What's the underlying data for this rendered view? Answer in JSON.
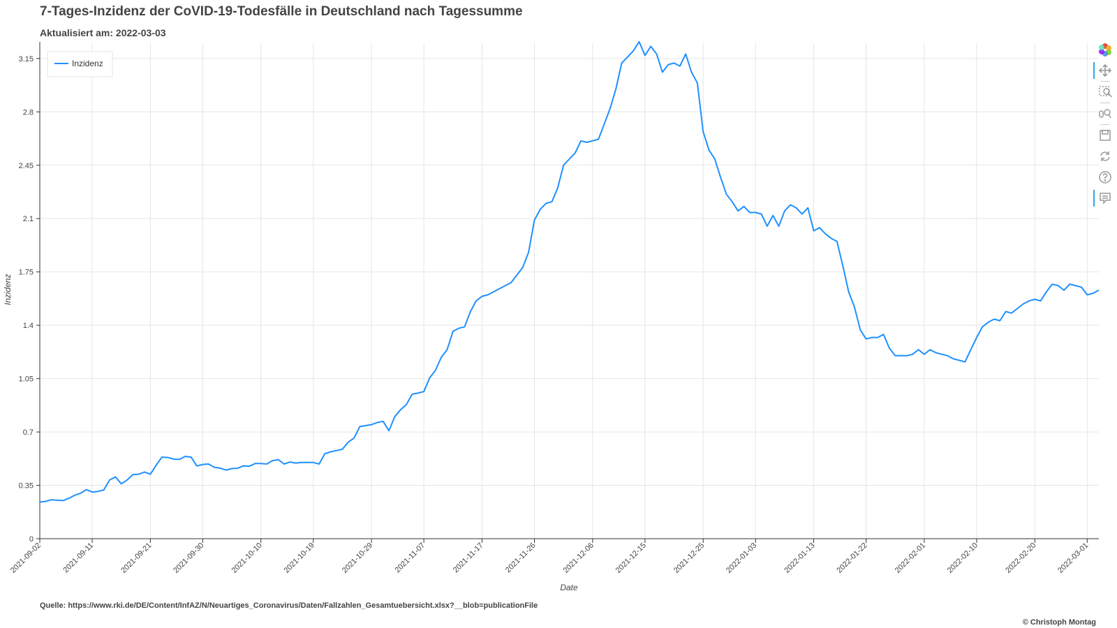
{
  "header": {
    "title": "7-Tages-Inzidenz der CoVID-19-Todesfälle in Deutschland nach Tagessumme",
    "subtitle": "Aktualisiert am: 2022-03-03"
  },
  "footer": {
    "source": "Quelle: https://www.rki.de/DE/Content/InfAZ/N/Neuartiges_Coronavirus/Daten/Fallzahlen_Gesamtuebersicht.xlsx?__blob=publicationFile",
    "copyright": "© Christoph Montag"
  },
  "toolbar": {
    "tools": [
      {
        "name": "bokeh-logo-icon",
        "active": false
      },
      {
        "name": "pan-icon",
        "active": true
      },
      {
        "name": "box-zoom-icon",
        "active": false
      },
      {
        "name": "wheel-zoom-icon",
        "active": false
      },
      {
        "name": "save-icon",
        "active": false
      },
      {
        "name": "reset-icon",
        "active": false
      },
      {
        "name": "help-icon",
        "active": false
      },
      {
        "name": "hover-icon",
        "active": true
      }
    ]
  },
  "chart_data": {
    "type": "line",
    "xlabel": "Date",
    "ylabel": "Inzidenz",
    "ylim": [
      0,
      3.25
    ],
    "yticks": [
      0,
      0.35,
      0.7,
      1.05,
      1.4,
      1.75,
      2.1,
      2.45,
      2.8,
      3.15
    ],
    "ytick_labels": [
      "0",
      "0.35",
      "0.7",
      "1.05",
      "1.4",
      "1.75",
      "2.1",
      "2.45",
      "2.8",
      "3.15"
    ],
    "xlim": [
      "2021-09-02",
      "2022-03-03"
    ],
    "xticks": [
      "2021-09-02",
      "2021-09-11",
      "2021-09-21",
      "2021-09-30",
      "2021-10-10",
      "2021-10-19",
      "2021-10-29",
      "2021-11-07",
      "2021-11-17",
      "2021-11-26",
      "2021-12-06",
      "2021-12-15",
      "2021-12-25",
      "2022-01-03",
      "2022-01-13",
      "2022-01-22",
      "2022-02-01",
      "2022-02-10",
      "2022-02-20",
      "2022-03-01"
    ],
    "grid": true,
    "legend_position": "top-left",
    "line_color": "#1e90ff",
    "series": [
      {
        "name": "Inzidenz",
        "x": [
          "2021-09-02",
          "2021-09-03",
          "2021-09-04",
          "2021-09-05",
          "2021-09-06",
          "2021-09-07",
          "2021-09-08",
          "2021-09-09",
          "2021-09-10",
          "2021-09-11",
          "2021-09-12",
          "2021-09-13",
          "2021-09-14",
          "2021-09-15",
          "2021-09-16",
          "2021-09-17",
          "2021-09-18",
          "2021-09-19",
          "2021-09-20",
          "2021-09-21",
          "2021-09-22",
          "2021-09-23",
          "2021-09-24",
          "2021-09-25",
          "2021-09-26",
          "2021-09-27",
          "2021-09-28",
          "2021-09-29",
          "2021-09-30",
          "2021-10-01",
          "2021-10-02",
          "2021-10-03",
          "2021-10-04",
          "2021-10-05",
          "2021-10-06",
          "2021-10-07",
          "2021-10-08",
          "2021-10-09",
          "2021-10-10",
          "2021-10-11",
          "2021-10-12",
          "2021-10-13",
          "2021-10-14",
          "2021-10-15",
          "2021-10-16",
          "2021-10-17",
          "2021-10-18",
          "2021-10-19",
          "2021-10-20",
          "2021-10-21",
          "2021-10-22",
          "2021-10-23",
          "2021-10-24",
          "2021-10-25",
          "2021-10-26",
          "2021-10-27",
          "2021-10-28",
          "2021-10-29",
          "2021-10-30",
          "2021-10-31",
          "2021-11-01",
          "2021-11-02",
          "2021-11-03",
          "2021-11-04",
          "2021-11-05",
          "2021-11-06",
          "2021-11-07",
          "2021-11-08",
          "2021-11-09",
          "2021-11-10",
          "2021-11-11",
          "2021-11-12",
          "2021-11-13",
          "2021-11-14",
          "2021-11-15",
          "2021-11-16",
          "2021-11-17",
          "2021-11-18",
          "2021-11-19",
          "2021-11-20",
          "2021-11-21",
          "2021-11-22",
          "2021-11-23",
          "2021-11-24",
          "2021-11-25",
          "2021-11-26",
          "2021-11-27",
          "2021-11-28",
          "2021-11-29",
          "2021-11-30",
          "2021-12-01",
          "2021-12-02",
          "2021-12-03",
          "2021-12-04",
          "2021-12-05",
          "2021-12-06",
          "2021-12-07",
          "2021-12-08",
          "2021-12-09",
          "2021-12-10",
          "2021-12-11",
          "2021-12-12",
          "2021-12-13",
          "2021-12-14",
          "2021-12-15",
          "2021-12-16",
          "2021-12-17",
          "2021-12-18",
          "2021-12-19",
          "2021-12-20",
          "2021-12-21",
          "2021-12-22",
          "2021-12-23",
          "2021-12-24",
          "2021-12-25",
          "2021-12-26",
          "2021-12-27",
          "2021-12-28",
          "2021-12-29",
          "2021-12-30",
          "2021-12-31",
          "2022-01-01",
          "2022-01-02",
          "2022-01-03",
          "2022-01-04",
          "2022-01-05",
          "2022-01-06",
          "2022-01-07",
          "2022-01-08",
          "2022-01-09",
          "2022-01-10",
          "2022-01-11",
          "2022-01-12",
          "2022-01-13",
          "2022-01-14",
          "2022-01-15",
          "2022-01-16",
          "2022-01-17",
          "2022-01-18",
          "2022-01-19",
          "2022-01-20",
          "2022-01-21",
          "2022-01-22",
          "2022-01-23",
          "2022-01-24",
          "2022-01-25",
          "2022-01-26",
          "2022-01-27",
          "2022-01-28",
          "2022-01-29",
          "2022-01-30",
          "2022-01-31",
          "2022-02-01",
          "2022-02-02",
          "2022-02-03",
          "2022-02-04",
          "2022-02-05",
          "2022-02-06",
          "2022-02-07",
          "2022-02-08",
          "2022-02-09",
          "2022-02-10",
          "2022-02-11",
          "2022-02-12",
          "2022-02-13",
          "2022-02-14",
          "2022-02-15",
          "2022-02-16",
          "2022-02-17",
          "2022-02-18",
          "2022-02-19",
          "2022-02-20",
          "2022-02-21",
          "2022-02-22",
          "2022-02-23",
          "2022-02-24",
          "2022-02-25",
          "2022-02-26",
          "2022-02-27",
          "2022-02-28",
          "2022-03-01",
          "2022-03-02",
          "2022-03-03"
        ],
        "values": [
          0.24,
          0.245,
          0.255,
          0.252,
          0.25,
          0.265,
          0.285,
          0.298,
          0.322,
          0.306,
          0.31,
          0.32,
          0.385,
          0.405,
          0.36,
          0.385,
          0.42,
          0.423,
          0.437,
          0.423,
          0.482,
          0.535,
          0.533,
          0.522,
          0.52,
          0.54,
          0.535,
          0.477,
          0.487,
          0.49,
          0.468,
          0.463,
          0.45,
          0.46,
          0.462,
          0.478,
          0.475,
          0.493,
          0.493,
          0.49,
          0.512,
          0.518,
          0.49,
          0.503,
          0.496,
          0.5,
          0.5,
          0.5,
          0.49,
          0.558,
          0.57,
          0.578,
          0.587,
          0.633,
          0.66,
          0.735,
          0.742,
          0.748,
          0.762,
          0.77,
          0.708,
          0.8,
          0.846,
          0.88,
          0.948,
          0.955,
          0.965,
          1.055,
          1.105,
          1.19,
          1.24,
          1.36,
          1.38,
          1.39,
          1.49,
          1.56,
          1.59,
          1.6,
          1.62,
          1.64,
          1.66,
          1.68,
          1.73,
          1.78,
          1.88,
          2.09,
          2.16,
          2.2,
          2.21,
          2.3,
          2.45,
          2.49,
          2.53,
          2.61,
          2.6,
          2.61,
          2.62,
          2.72,
          2.82,
          2.95,
          3.12,
          3.16,
          3.2,
          3.26,
          3.17,
          3.23,
          3.18,
          3.06,
          3.11,
          3.12,
          3.1,
          3.18,
          3.06,
          2.99,
          2.67,
          2.55,
          2.49,
          2.37,
          2.26,
          2.21,
          2.15,
          2.18,
          2.14,
          2.14,
          2.13,
          2.05,
          2.12,
          2.05,
          2.15,
          2.19,
          2.17,
          2.13,
          2.17,
          2.02,
          2.04,
          2.0,
          1.97,
          1.95,
          1.79,
          1.62,
          1.52,
          1.37,
          1.31,
          1.32,
          1.32,
          1.34,
          1.25,
          1.2,
          1.2,
          1.2,
          1.21,
          1.24,
          1.21,
          1.24,
          1.22,
          1.21,
          1.2,
          1.18,
          1.17,
          1.16,
          1.24,
          1.32,
          1.39,
          1.42,
          1.44,
          1.43,
          1.49,
          1.48,
          1.51,
          1.54,
          1.56,
          1.57,
          1.56,
          1.62,
          1.67,
          1.66,
          1.63,
          1.67,
          1.66,
          1.65,
          1.6,
          1.61,
          1.63
        ]
      }
    ]
  }
}
